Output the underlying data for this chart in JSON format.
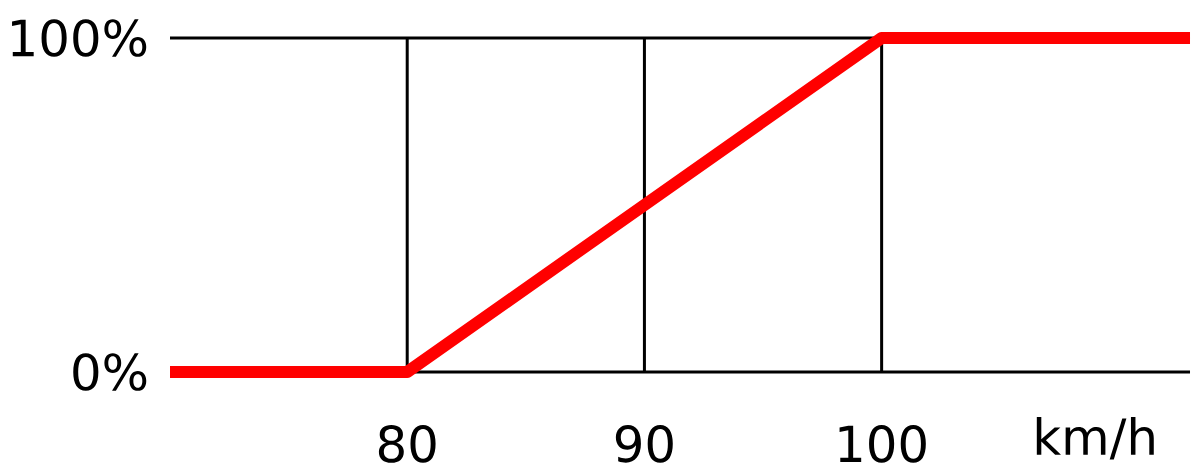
{
  "chart_data": {
    "type": "line",
    "xlabel": "km/h",
    "x": [
      70,
      80,
      100,
      113
    ],
    "series": [
      {
        "color": "#ff0000",
        "values": [
          0,
          0,
          100,
          100
        ]
      }
    ],
    "xlim": [
      70,
      113
    ],
    "ylim": [
      0,
      100
    ],
    "xticks": [
      80,
      90,
      100
    ],
    "yticks": [
      {
        "value": 0,
        "label": "0%"
      },
      {
        "value": 100,
        "label": "100%"
      }
    ],
    "grid": true,
    "marker": "none",
    "line_style": "solid"
  }
}
